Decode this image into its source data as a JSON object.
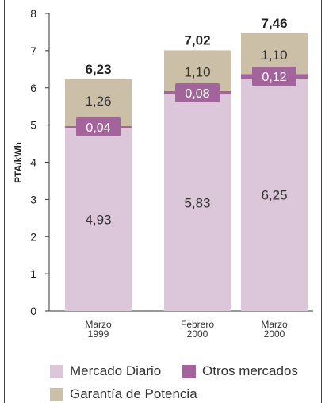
{
  "chart_data": {
    "type": "bar",
    "stacked": true,
    "categories": [
      [
        "Marzo",
        "1999"
      ],
      [
        "Febrero",
        "2000"
      ],
      [
        "Marzo",
        "2000"
      ]
    ],
    "series": [
      {
        "name": "Mercado Diario",
        "color": "#dcc6da",
        "values": [
          4.93,
          5.83,
          6.25
        ],
        "labels": [
          "4,93",
          "5,83",
          "6,25"
        ]
      },
      {
        "name": "Otros mercados",
        "color": "#a2649a",
        "values": [
          0.04,
          0.08,
          0.12
        ],
        "labels": [
          "0,04",
          "0,08",
          "0,12"
        ]
      },
      {
        "name": "Garantía de Potencia",
        "color": "#cbc0a7",
        "values": [
          1.26,
          1.1,
          1.1
        ],
        "labels": [
          "1,26",
          "1,10",
          "1,10"
        ]
      }
    ],
    "totals": [
      "6,23",
      "7,02",
      "7,46"
    ],
    "ylabel": "PTA/kWh",
    "xlabel": "",
    "title": "",
    "ylim": [
      0,
      8
    ],
    "yticks": [
      0,
      1,
      2,
      3,
      4,
      5,
      6,
      7,
      8
    ],
    "grid": false,
    "legend_position": "bottom"
  }
}
